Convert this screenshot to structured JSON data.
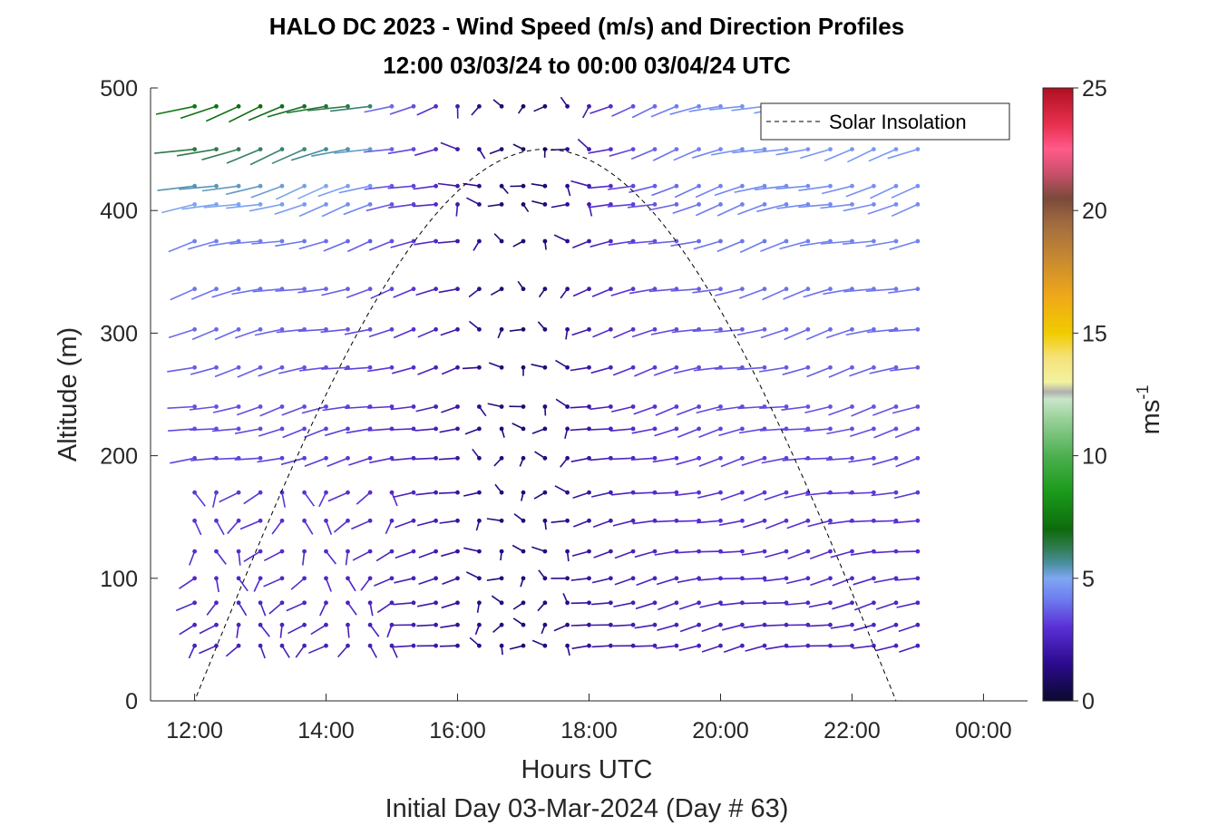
{
  "chart_data": {
    "type": "wind-barb-profile",
    "title": "HALO DC 2023 - Wind Speed (m/s) and Direction Profiles",
    "subtitle": "12:00 03/03/24 to 00:00 03/04/24  UTC",
    "xlabel": "Hours UTC",
    "xlabel2": "Initial Day 03-Mar-2024 (Day # 63)",
    "ylabel": "Altitude (m)",
    "xlim_hours": [
      11.33,
      24.67
    ],
    "ylim": [
      0,
      500
    ],
    "xticks": [
      {
        "hour": 12,
        "label": "12:00"
      },
      {
        "hour": 14,
        "label": "14:00"
      },
      {
        "hour": 16,
        "label": "16:00"
      },
      {
        "hour": 18,
        "label": "18:00"
      },
      {
        "hour": 20,
        "label": "20:00"
      },
      {
        "hour": 22,
        "label": "22:00"
      },
      {
        "hour": 24,
        "label": "00:00"
      }
    ],
    "yticks": [
      0,
      100,
      200,
      300,
      400,
      500
    ],
    "legend": {
      "entries": [
        "Solar Insolation"
      ],
      "placement": "top-right"
    },
    "colorbar": {
      "label": "ms",
      "label_exponent": "-1",
      "range": [
        0,
        25
      ],
      "ticks": [
        0,
        5,
        10,
        15,
        20,
        25
      ],
      "stops": [
        {
          "v": 0,
          "c": "#0a0a2e"
        },
        {
          "v": 1.5,
          "c": "#2b0a8c"
        },
        {
          "v": 3,
          "c": "#5a2fd6"
        },
        {
          "v": 4.2,
          "c": "#6f7ff0"
        },
        {
          "v": 5,
          "c": "#7fa6f2"
        },
        {
          "v": 5.6,
          "c": "#4a8fa0"
        },
        {
          "v": 6.3,
          "c": "#2e7a4a"
        },
        {
          "v": 7,
          "c": "#0d6b0d"
        },
        {
          "v": 8.5,
          "c": "#1a9a1a"
        },
        {
          "v": 10,
          "c": "#4caf50"
        },
        {
          "v": 11.5,
          "c": "#99d199"
        },
        {
          "v": 12.3,
          "c": "#c8e6c8"
        },
        {
          "v": 12.6,
          "c": "#b0b0b0"
        },
        {
          "v": 13,
          "c": "#f2f2a0"
        },
        {
          "v": 14,
          "c": "#f5e27a"
        },
        {
          "v": 15,
          "c": "#f0cc00"
        },
        {
          "v": 16.5,
          "c": "#f0a81a"
        },
        {
          "v": 18,
          "c": "#c88a30"
        },
        {
          "v": 19.5,
          "c": "#a06a40"
        },
        {
          "v": 20.5,
          "c": "#7a4a3a"
        },
        {
          "v": 21.5,
          "c": "#c8506a"
        },
        {
          "v": 22.5,
          "c": "#ff5a8a"
        },
        {
          "v": 23.5,
          "c": "#e83050"
        },
        {
          "v": 25,
          "c": "#b01020"
        }
      ]
    },
    "solar_insolation": {
      "style": "dashed",
      "color": "#000000",
      "sunrise_hour": 12.0,
      "sunset_hour": 22.67,
      "peak_hour": 17.33,
      "peak_altitude": 450
    },
    "times_hours": [
      12.0,
      12.33,
      12.67,
      13.0,
      13.33,
      13.67,
      14.0,
      14.33,
      14.67,
      15.0,
      15.33,
      15.67,
      16.0,
      16.33,
      16.67,
      17.0,
      17.33,
      17.67,
      18.0,
      18.33,
      18.67,
      19.0,
      19.33,
      19.67,
      20.0,
      20.33,
      20.67,
      21.0,
      21.33,
      21.67,
      22.0,
      22.33,
      22.67,
      23.0
    ],
    "range_gates_m": [
      45,
      62,
      80,
      100,
      122,
      147,
      170,
      198,
      222,
      240,
      272,
      303,
      336,
      375,
      405,
      420,
      450,
      485
    ],
    "vector_convention": "direction_deg is the direction the barb points, compass degrees; values are approximate readings"
  }
}
